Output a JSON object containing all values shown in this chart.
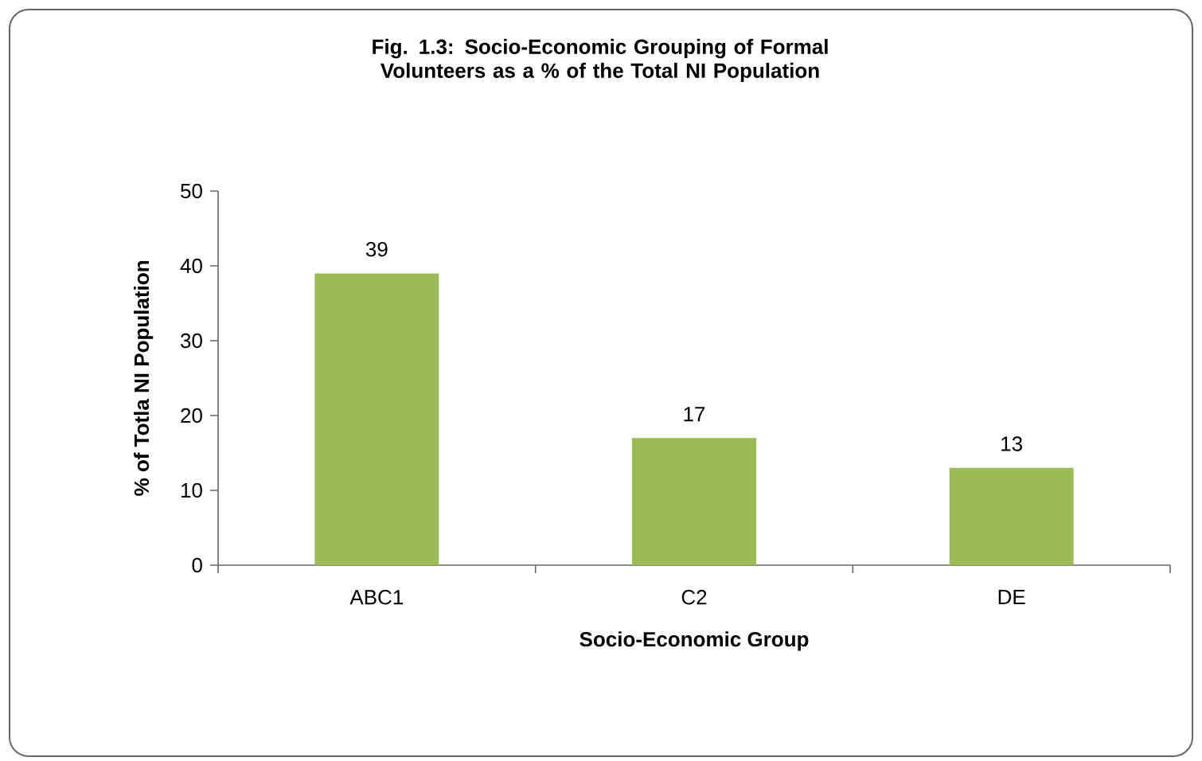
{
  "chart_data": {
    "type": "bar",
    "title": "Fig. 1.3: Socio-Economic Grouping of Formal Volunteers as a % of the Total NI Population",
    "xlabel": "Socio-Economic Group",
    "ylabel": "% of Totla NI Population",
    "categories": [
      "ABC1",
      "C2",
      "DE"
    ],
    "values": [
      39,
      17,
      13
    ],
    "color": "#9bbb59",
    "ylim": [
      0,
      50
    ],
    "yticks": [
      0,
      10,
      20,
      30,
      40,
      50
    ],
    "grid": false,
    "data_labels": true
  }
}
